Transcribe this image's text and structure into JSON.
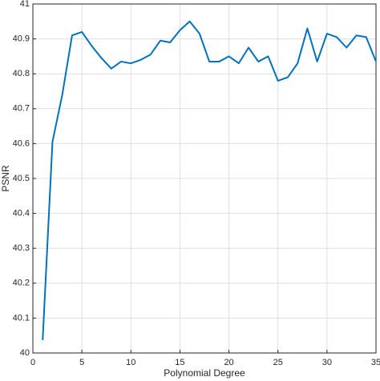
{
  "chart_data": {
    "type": "line",
    "x": [
      1,
      2,
      3,
      4,
      5,
      6,
      7,
      8,
      9,
      10,
      11,
      12,
      13,
      14,
      15,
      16,
      17,
      18,
      19,
      20,
      21,
      22,
      23,
      24,
      25,
      26,
      27,
      28,
      29,
      30,
      31,
      32,
      33,
      34,
      35
    ],
    "values": [
      40.037,
      40.605,
      40.74,
      40.91,
      40.92,
      40.88,
      40.845,
      40.815,
      40.835,
      40.83,
      40.84,
      40.855,
      40.895,
      40.89,
      40.925,
      40.95,
      40.915,
      40.835,
      40.835,
      40.85,
      40.83,
      40.875,
      40.835,
      40.85,
      40.78,
      40.79,
      40.83,
      40.93,
      40.835,
      40.915,
      40.905,
      40.875,
      40.91,
      40.905,
      40.835
    ],
    "color": "#0072bd",
    "xlabel": "Polynomial Degree",
    "ylabel": "PSNR",
    "xlim": [
      0,
      35
    ],
    "xticks": [
      0,
      5,
      10,
      15,
      20,
      25,
      30,
      35
    ],
    "ylim": [
      40,
      41
    ],
    "yticks": [
      40,
      40.1,
      40.2,
      40.3,
      40.4,
      40.5,
      40.6,
      40.7,
      40.8,
      40.9,
      41
    ],
    "grid": true
  }
}
